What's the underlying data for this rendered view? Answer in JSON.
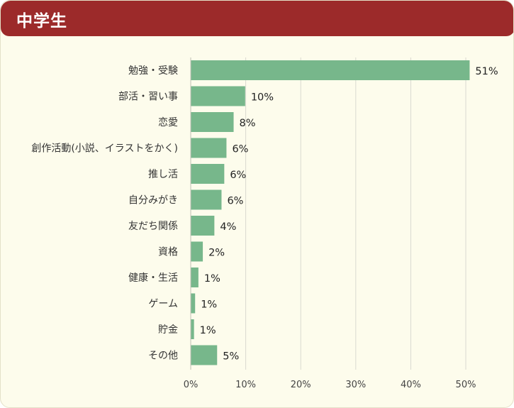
{
  "header": {
    "title": "中学生"
  },
  "colors": {
    "header_bg": "#9c2a2a",
    "panel_bg": "#fdfcec",
    "bar": "#77b78b",
    "grid": "#d9d9d0"
  },
  "chart_data": {
    "type": "bar",
    "orientation": "horizontal",
    "title": "中学生",
    "categories": [
      "勉強・受験",
      "部活・習い事",
      "恋愛",
      "創作活動(小説、イラストをかく)",
      "推し活",
      "自分みがき",
      "友だち関係",
      "資格",
      "健康・生活",
      "ゲーム",
      "貯金",
      "その他"
    ],
    "values": [
      51,
      10,
      8,
      6,
      6,
      6,
      4,
      2,
      1,
      1,
      1,
      5
    ],
    "value_labels": [
      "51%",
      "10%",
      "8%",
      "6%",
      "6%",
      "6%",
      "4%",
      "2%",
      "1%",
      "1%",
      "1%",
      "5%"
    ],
    "bar_values_precise": [
      50.7,
      9.9,
      7.8,
      6.5,
      6.1,
      5.6,
      4.3,
      2.2,
      1.4,
      0.8,
      0.6,
      4.8
    ],
    "xlim": [
      0,
      50
    ],
    "xticks": [
      0,
      10,
      20,
      30,
      40,
      50
    ],
    "xtick_labels": [
      "0%",
      "10%",
      "20%",
      "30%",
      "40%",
      "50%"
    ],
    "grid": "vertical",
    "legend": "none"
  }
}
